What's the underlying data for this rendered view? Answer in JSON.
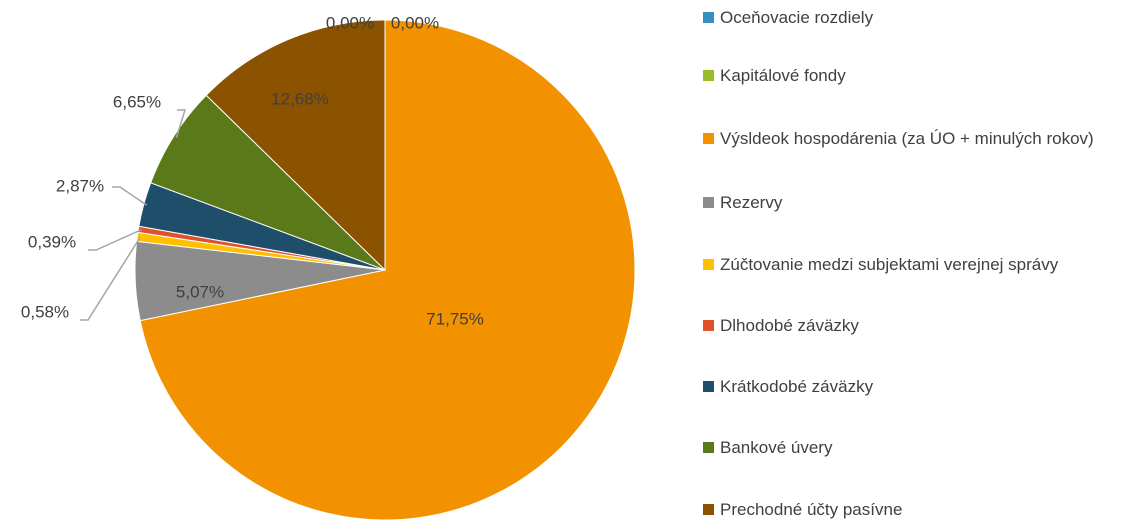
{
  "chart_data": {
    "type": "pie",
    "categories": [
      "Oceňovacie rozdiely",
      "Kapitálové fondy",
      "Výsldeok hospodárenia (za ÚO + minulých rokov)",
      "Rezervy",
      "Zúčtovanie medzi subjektami verejnej správy",
      "Dlhodobé záväzky",
      "Krátkodobé záväzky",
      "Bankové úvery",
      "Prechodné účty pasívne"
    ],
    "values": [
      0.0,
      0.0,
      71.75,
      5.07,
      0.58,
      0.39,
      2.87,
      6.65,
      12.68
    ],
    "value_labels": [
      "0,00%",
      "0,00%",
      "71,75%",
      "5,07%",
      "0,58%",
      "0,39%",
      "2,87%",
      "6,65%",
      "12,68%"
    ],
    "colors": [
      "#3a8dbf",
      "#9bbb2d",
      "#f39200",
      "#8c8c8c",
      "#ffc000",
      "#e0522b",
      "#1f4e6b",
      "#5a7a1a",
      "#8b5200"
    ],
    "legend": "right"
  }
}
